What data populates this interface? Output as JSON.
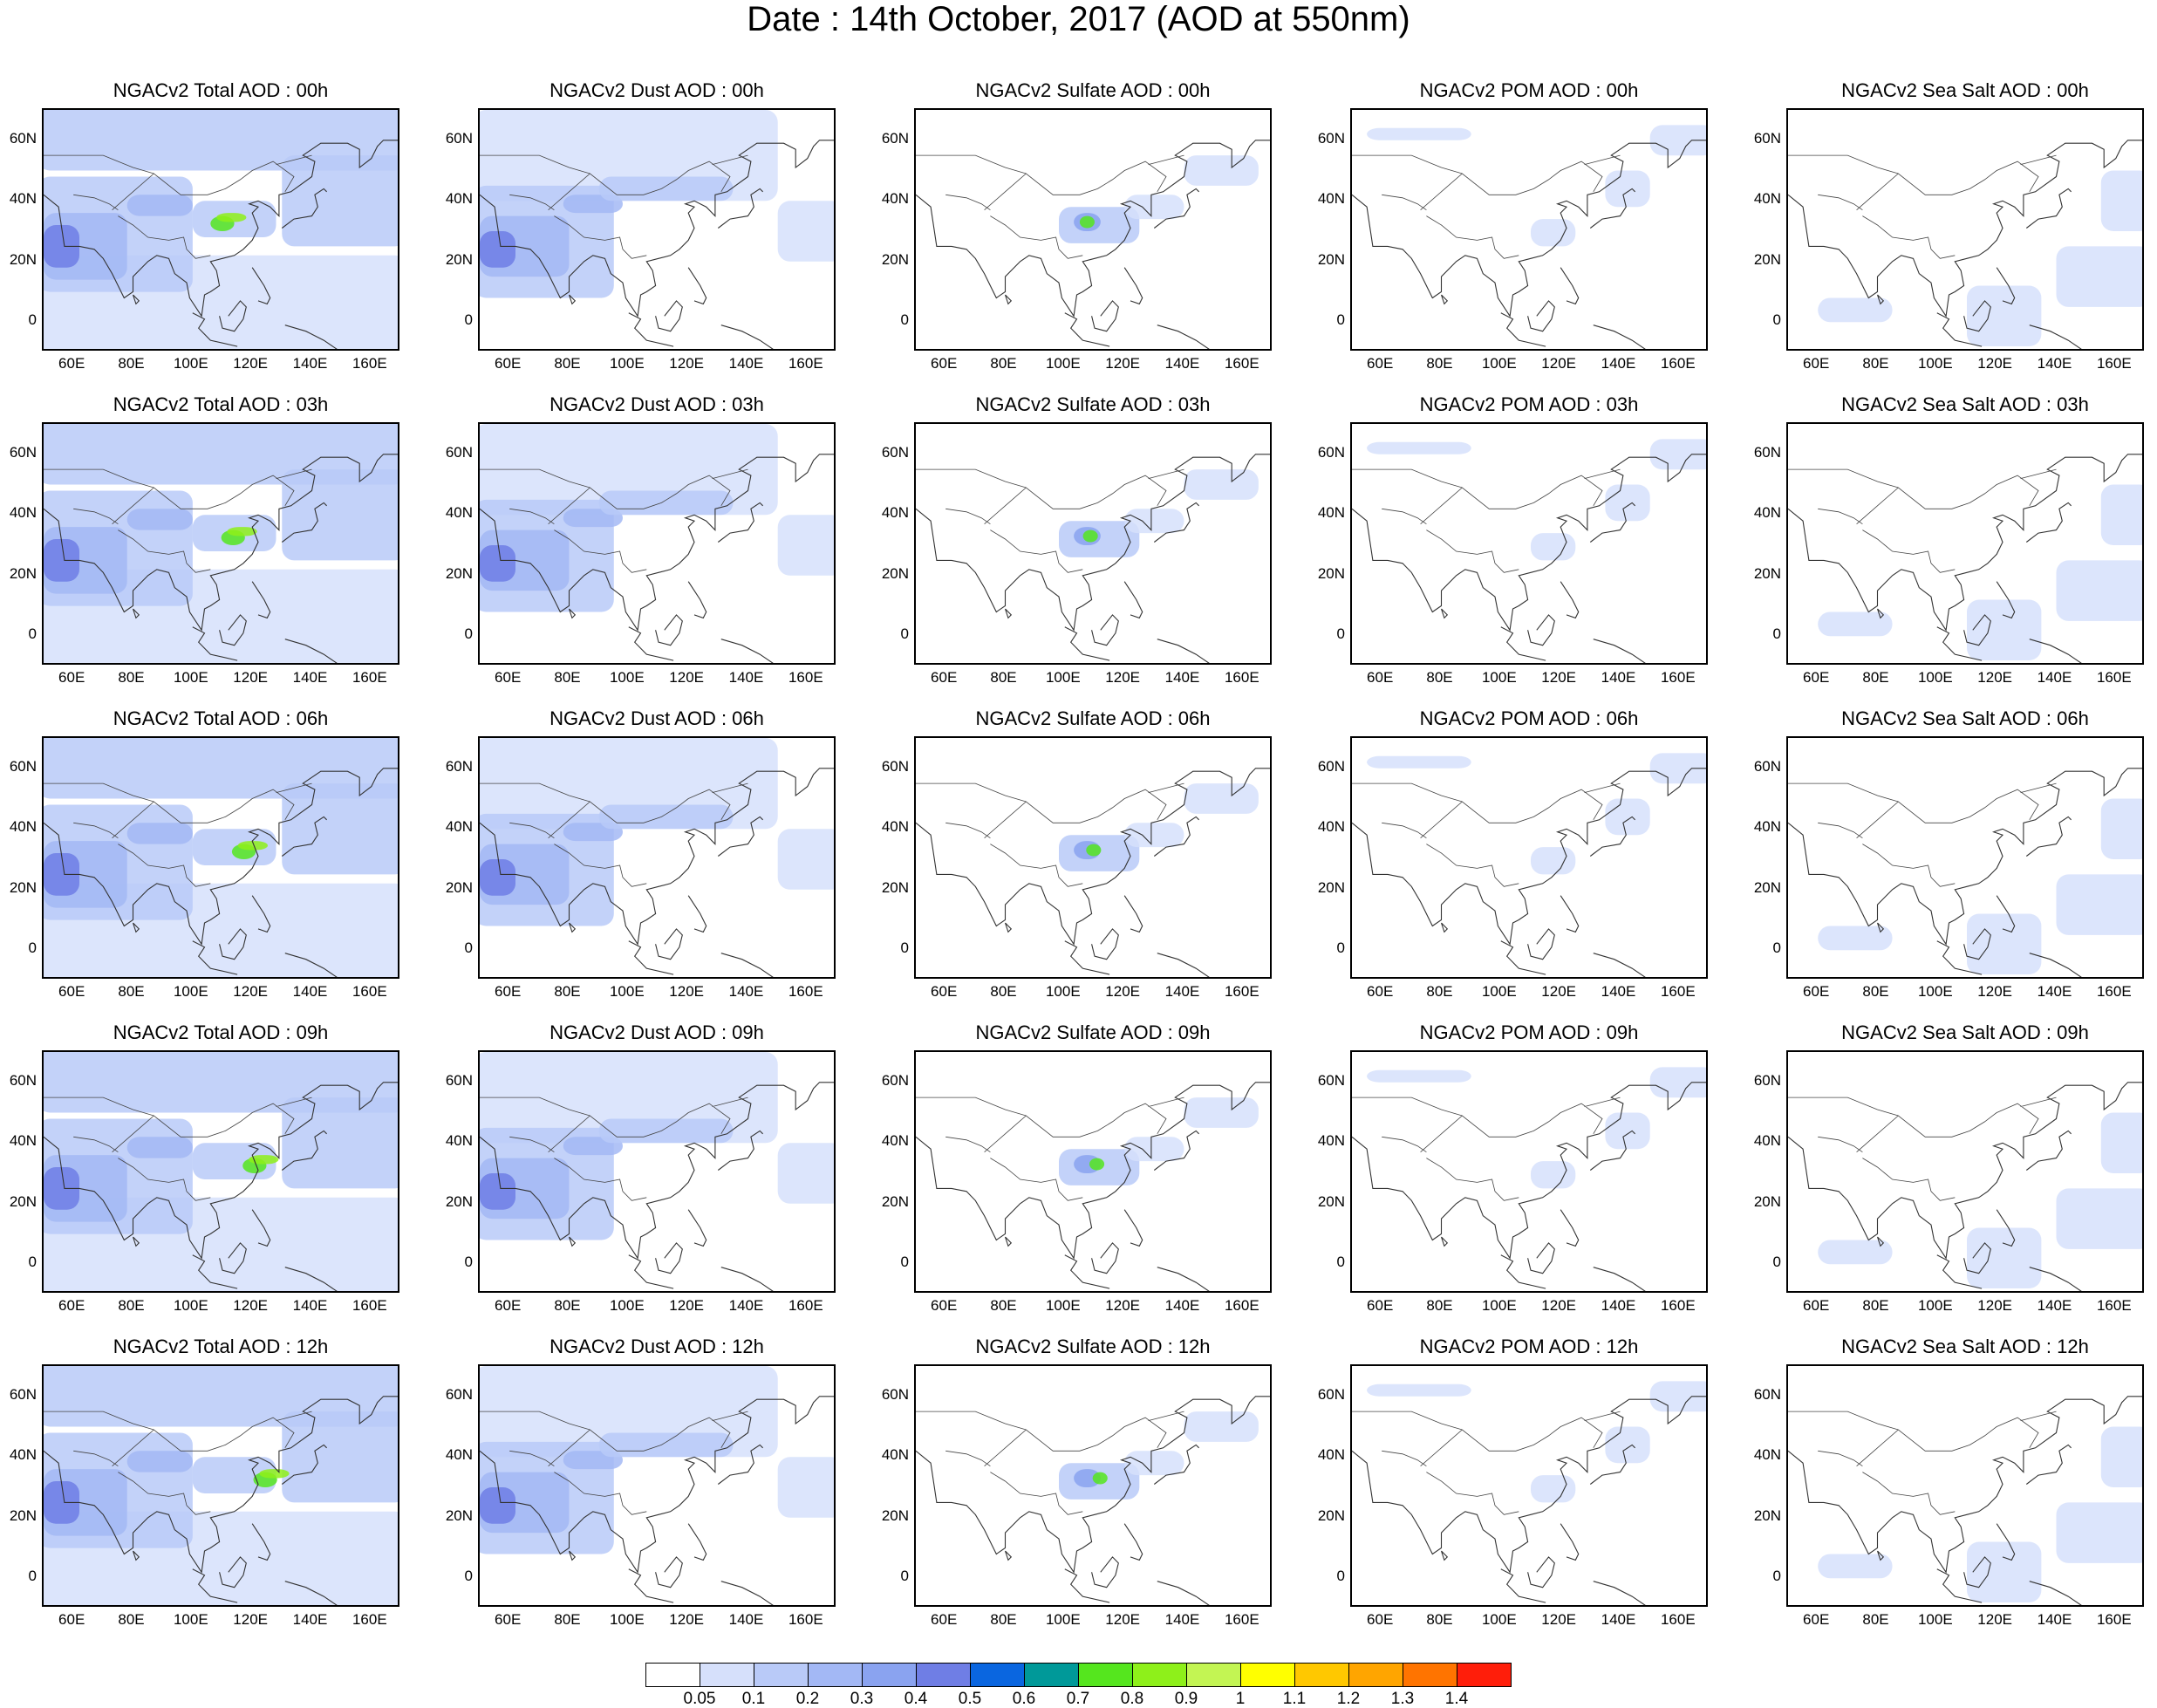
{
  "title": "Date : 14th October, 2017 (AOD at 550nm)",
  "panel_titles": [
    [
      "NGACv2 Total AOD : 00h",
      "NGACv2 Dust AOD : 00h",
      "NGACv2 Sulfate AOD : 00h",
      "NGACv2 POM AOD : 00h",
      "NGACv2 Sea Salt AOD : 00h"
    ],
    [
      "NGACv2 Total AOD : 03h",
      "NGACv2 Dust AOD : 03h",
      "NGACv2 Sulfate AOD : 03h",
      "NGACv2 POM AOD : 03h",
      "NGACv2 Sea Salt AOD : 03h"
    ],
    [
      "NGACv2 Total AOD : 06h",
      "NGACv2 Dust AOD : 06h",
      "NGACv2 Sulfate AOD : 06h",
      "NGACv2 POM AOD : 06h",
      "NGACv2 Sea Salt AOD : 06h"
    ],
    [
      "NGACv2 Total AOD : 09h",
      "NGACv2 Dust AOD : 09h",
      "NGACv2 Sulfate AOD : 09h",
      "NGACv2 POM AOD : 09h",
      "NGACv2 Sea Salt  AOD : 09h"
    ],
    [
      "NGACv2 Total AOD  : 12h",
      "NGACv2 Dust AOD : 12h",
      "NGACv2 Sulfate AOD : 12h",
      "NGACv2 POM  AOD : 12h",
      "NGACv2 Sea Salt  AOD : 12h"
    ]
  ],
  "lat_ticks": [
    "60N",
    "40N",
    "20N",
    "0"
  ],
  "lon_ticks": [
    "60E",
    "80E",
    "100E",
    "120E",
    "140E",
    "160E"
  ],
  "colorbar": {
    "labels": [
      "0.05",
      "0.1",
      "0.2",
      "0.3",
      "0.4",
      "0.5",
      "0.6",
      "0.7",
      "0.8",
      "0.9",
      "1",
      "1.1",
      "1.2",
      "1.3",
      "1.4"
    ],
    "colors": [
      "#ffffff",
      "#d6e0fb",
      "#b9caf8",
      "#a3b8f5",
      "#8aa3f0",
      "#6f7ee5",
      "#0a66e0",
      "#009999",
      "#55e61e",
      "#8ef01a",
      "#c3f553",
      "#ffff00",
      "#ffc800",
      "#ffa500",
      "#ff7400",
      "#ff1e0a"
    ]
  }
}
